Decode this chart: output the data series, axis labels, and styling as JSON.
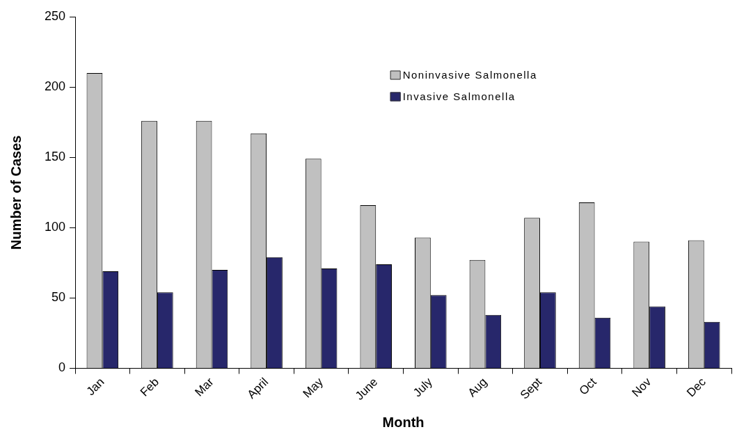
{
  "chart_data": {
    "type": "bar",
    "xlabel": "Month",
    "ylabel": "Number of Cases",
    "categories": [
      "Jan",
      "Feb",
      "Mar",
      "April",
      "May",
      "June",
      "July",
      "Aug",
      "Sept",
      "Oct",
      "Nov",
      "Dec"
    ],
    "series": [
      {
        "name": "Noninvasive Salmonella",
        "color": "#c0c0c0",
        "values": [
          210,
          176,
          176,
          167,
          149,
          116,
          93,
          77,
          107,
          118,
          90,
          91
        ]
      },
      {
        "name": "Invasive Salmonella",
        "color": "#27276b",
        "values": [
          69,
          54,
          70,
          79,
          71,
          74,
          52,
          38,
          54,
          36,
          44,
          33
        ]
      }
    ],
    "ylim": [
      0,
      250
    ],
    "yticks": [
      0,
      50,
      100,
      150,
      200,
      250
    ],
    "grid": false,
    "legend": "top right"
  }
}
